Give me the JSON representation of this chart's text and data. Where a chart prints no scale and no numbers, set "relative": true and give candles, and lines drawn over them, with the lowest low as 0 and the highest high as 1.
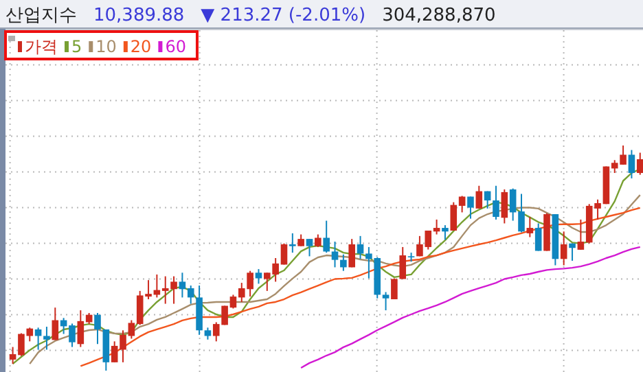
{
  "chart_data": {
    "type": "candlestick",
    "title": "산업지수",
    "annotations": [
      "10,389.88",
      "▼ 213.27 (-2.01%)",
      "304,288,870"
    ],
    "relative": true,
    "grid": true,
    "legend": "top left",
    "categories": [
      null,
      null,
      null,
      null,
      null,
      null,
      null,
      null,
      null,
      null,
      null,
      null,
      null,
      null,
      null,
      null,
      null,
      null,
      null,
      null,
      null,
      null,
      null,
      null,
      null,
      null,
      null,
      null,
      null,
      null,
      null,
      null,
      null,
      null,
      null,
      null,
      null,
      null,
      null,
      null,
      null,
      null,
      null,
      null,
      null,
      null,
      null,
      null,
      null,
      null,
      null,
      null,
      null,
      null,
      null,
      null,
      null,
      null,
      null,
      null,
      null,
      null,
      null,
      null,
      null,
      null,
      null,
      null,
      null,
      null,
      null,
      null,
      null,
      null,
      null
    ],
    "series": [
      {
        "name": "가격",
        "type": "candlestick",
        "color": "#cc2a1e",
        "ohlc": [
          [
            0.049,
            0.105,
            0.03,
            0.073
          ],
          [
            0.069,
            0.166,
            0.065,
            0.163
          ],
          [
            0.154,
            0.191,
            0.13,
            0.187
          ],
          [
            0.183,
            0.191,
            0.093,
            0.154
          ],
          [
            0.154,
            0.195,
            0.093,
            0.138
          ],
          [
            0.136,
            0.28,
            0.136,
            0.224
          ],
          [
            0.224,
            0.234,
            0.163,
            0.197
          ],
          [
            0.201,
            0.209,
            0.105,
            0.126
          ],
          [
            0.118,
            0.268,
            0.105,
            0.22
          ],
          [
            0.215,
            0.256,
            0.207,
            0.248
          ],
          [
            0.248,
            0.256,
            0.118,
            0.183
          ],
          [
            0.183,
            0.183,
            0,
            0.037
          ],
          [
            0.037,
            0.13,
            0.037,
            0.11
          ],
          [
            0.093,
            0.179,
            0.037,
            0.159
          ],
          [
            0.154,
            0.224,
            0.142,
            0.212
          ],
          [
            0.207,
            0.354,
            0.203,
            0.334
          ],
          [
            0.329,
            0.402,
            0.317,
            0.341
          ],
          [
            0.337,
            0.427,
            0.325,
            0.358
          ],
          [
            0.354,
            0.419,
            0.297,
            0.366
          ],
          [
            0.362,
            0.419,
            0.297,
            0.395
          ],
          [
            0.395,
            0.435,
            0.325,
            0.362
          ],
          [
            0.366,
            0.378,
            0.297,
            0.325
          ],
          [
            0.325,
            0.378,
            0.159,
            0.179
          ],
          [
            0.179,
            0.191,
            0.138,
            0.154
          ],
          [
            0.154,
            0.215,
            0.13,
            0.207
          ],
          [
            0.203,
            0.288,
            0.203,
            0.288
          ],
          [
            0.28,
            0.337,
            0.276,
            0.329
          ],
          [
            0.325,
            0.39,
            0.305,
            0.366
          ],
          [
            0.362,
            0.443,
            0.329,
            0.435
          ],
          [
            0.435,
            0.451,
            0.386,
            0.41
          ],
          [
            0.407,
            0.435,
            0.354,
            0.435
          ],
          [
            0.427,
            0.5,
            0.395,
            0.476
          ],
          [
            0.471,
            0.565,
            0.471,
            0.561
          ],
          [
            0.561,
            0.61,
            0.524,
            0.553
          ],
          [
            0.553,
            0.605,
            0.553,
            0.585
          ],
          [
            0.585,
            0.585,
            0.508,
            0.553
          ],
          [
            0.553,
            0.605,
            0.549,
            0.59
          ],
          [
            0.59,
            0.666,
            0.524,
            0.529
          ],
          [
            0.529,
            0.573,
            0.459,
            0.492
          ],
          [
            0.492,
            0.516,
            0.443,
            0.459
          ],
          [
            0.459,
            0.585,
            0.459,
            0.561
          ],
          [
            0.561,
            0.598,
            0.496,
            0.52
          ],
          [
            0.52,
            0.549,
            0.41,
            0.496
          ],
          [
            0.5,
            0.504,
            0.321,
            0.337
          ],
          [
            0.337,
            0.349,
            0.268,
            0.321
          ],
          [
            0.317,
            0.41,
            0.317,
            0.407
          ],
          [
            0.407,
            0.549,
            0.407,
            0.512
          ],
          [
            0.508,
            0.524,
            0.484,
            0.504
          ],
          [
            0.508,
            0.598,
            0.508,
            0.561
          ],
          [
            0.549,
            0.622,
            0.538,
            0.622
          ],
          [
            0.618,
            0.671,
            0.605,
            0.634
          ],
          [
            0.634,
            0.646,
            0.581,
            0.618
          ],
          [
            0.622,
            0.748,
            0.622,
            0.736
          ],
          [
            0.732,
            0.776,
            0.703,
            0.773
          ],
          [
            0.773,
            0.773,
            0.675,
            0.724
          ],
          [
            0.72,
            0.821,
            0.72,
            0.797
          ],
          [
            0.797,
            0.797,
            0.72,
            0.756
          ],
          [
            0.756,
            0.821,
            0.671,
            0.683
          ],
          [
            0.679,
            0.805,
            0.654,
            0.793
          ],
          [
            0.805,
            0.809,
            0.666,
            0.703
          ],
          [
            0.707,
            0.785,
            0.614,
            0.618
          ],
          [
            0.61,
            0.683,
            0.593,
            0.634
          ],
          [
            0.634,
            0.654,
            0.532,
            0.532
          ],
          [
            0.532,
            0.699,
            0.532,
            0.695
          ],
          [
            0.695,
            0.695,
            0.468,
            0.496
          ],
          [
            0.496,
            0.618,
            0.468,
            0.561
          ],
          [
            0.565,
            0.565,
            0.488,
            0.545
          ],
          [
            0.537,
            0.671,
            0.537,
            0.573
          ],
          [
            0.569,
            0.74,
            0.565,
            0.732
          ],
          [
            0.72,
            0.76,
            0.671,
            0.744
          ],
          [
            0.74,
            0.907,
            0.74,
            0.907
          ],
          [
            0.898,
            0.935,
            0.878,
            0.923
          ],
          [
            0.915,
            1,
            0.915,
            0.959
          ],
          [
            0.959,
            0.98,
            0.854,
            0.878
          ],
          [
            0.878,
            0.968,
            0.87,
            0.939
          ]
        ],
        "colors": [
          "#cc2a1e",
          "#cc2a1e",
          "#cc2a1e",
          "#0f86bf",
          "#0f86bf",
          "#cc2a1e",
          "#0f86bf",
          "#0f86bf",
          "#cc2a1e",
          "#cc2a1e",
          "#0f86bf",
          "#0f86bf",
          "#cc2a1e",
          "#cc2a1e",
          "#cc2a1e",
          "#cc2a1e",
          "#cc2a1e",
          "#cc2a1e",
          "#cc2a1e",
          "#cc2a1e",
          "#0f86bf",
          "#0f86bf",
          "#0f86bf",
          "#0f86bf",
          "#cc2a1e",
          "#cc2a1e",
          "#cc2a1e",
          "#cc2a1e",
          "#cc2a1e",
          "#0f86bf",
          "#cc2a1e",
          "#cc2a1e",
          "#cc2a1e",
          "#0f86bf",
          "#cc2a1e",
          "#0f86bf",
          "#cc2a1e",
          "#0f86bf",
          "#0f86bf",
          "#0f86bf",
          "#cc2a1e",
          "#0f86bf",
          "#0f86bf",
          "#0f86bf",
          "#0f86bf",
          "#cc2a1e",
          "#cc2a1e",
          "#0f86bf",
          "#cc2a1e",
          "#cc2a1e",
          "#cc2a1e",
          "#0f86bf",
          "#cc2a1e",
          "#cc2a1e",
          "#0f86bf",
          "#cc2a1e",
          "#0f86bf",
          "#0f86bf",
          "#cc2a1e",
          "#0f86bf",
          "#0f86bf",
          "#cc2a1e",
          "#0f86bf",
          "#cc2a1e",
          "#0f86bf",
          "#cc2a1e",
          "#0f86bf",
          "#cc2a1e",
          "#cc2a1e",
          "#cc2a1e",
          "#cc2a1e",
          "#cc2a1e",
          "#cc2a1e",
          "#0f86bf",
          "#cc2a1e"
        ]
      },
      {
        "name": "5",
        "type": "line",
        "color": "#78a032",
        "values": [
          0.03,
          0.061,
          0.091,
          0.116,
          0.134,
          0.159,
          0.183,
          0.189,
          0.201,
          0.207,
          0.201,
          0.177,
          0.165,
          0.159,
          0.171,
          0.226,
          0.268,
          0.305,
          0.335,
          0.366,
          0.372,
          0.354,
          0.305,
          0.268,
          0.25,
          0.238,
          0.238,
          0.262,
          0.317,
          0.366,
          0.396,
          0.427,
          0.445,
          0.488,
          0.53,
          0.549,
          0.555,
          0.549,
          0.543,
          0.524,
          0.518,
          0.518,
          0.506,
          0.47,
          0.439,
          0.415,
          0.421,
          0.427,
          0.47,
          0.508,
          0.545,
          0.579,
          0.62,
          0.66,
          0.695,
          0.715,
          0.732,
          0.748,
          0.742,
          0.727,
          0.701,
          0.681,
          0.66,
          0.646,
          0.626,
          0.599,
          0.569,
          0.565,
          0.573,
          0.63,
          0.691,
          0.752,
          0.843,
          0.878,
          0.895
        ]
      },
      {
        "name": "10",
        "type": "line",
        "color": "#a88e6c",
        "values": [
          null,
          null,
          0.03,
          0.081,
          0.11,
          0.132,
          0.146,
          0.159,
          0.171,
          0.18,
          0.183,
          0.171,
          0.165,
          0.165,
          0.171,
          0.195,
          0.207,
          0.226,
          0.238,
          0.256,
          0.274,
          0.293,
          0.301,
          0.302,
          0.305,
          0.305,
          0.305,
          0.305,
          0.305,
          0.311,
          0.317,
          0.341,
          0.376,
          0.409,
          0.439,
          0.482,
          0.503,
          0.512,
          0.509,
          0.506,
          0.503,
          0.494,
          0.488,
          0.488,
          0.476,
          0.468,
          0.463,
          0.47,
          0.488,
          0.5,
          0.512,
          0.524,
          0.549,
          0.598,
          0.646,
          0.677,
          0.695,
          0.707,
          0.713,
          0.72,
          0.724,
          0.724,
          0.72,
          0.701,
          0.683,
          0.659,
          0.634,
          0.616,
          0.616,
          0.628,
          0.646,
          0.671,
          0.695,
          0.738,
          0.78
        ]
      },
      {
        "name": "20",
        "type": "line",
        "color": "#f2561e",
        "values": [
          null,
          null,
          null,
          null,
          null,
          null,
          null,
          null,
          0.02,
          0.034,
          0.049,
          0.064,
          0.079,
          0.104,
          0.128,
          0.152,
          0.171,
          0.183,
          0.195,
          0.207,
          0.223,
          0.232,
          0.238,
          0.238,
          0.238,
          0.241,
          0.25,
          0.262,
          0.274,
          0.284,
          0.299,
          0.305,
          0.317,
          0.335,
          0.348,
          0.363,
          0.378,
          0.393,
          0.407,
          0.409,
          0.412,
          0.424,
          0.439,
          0.454,
          0.463,
          0.476,
          0.485,
          0.49,
          0.494,
          0.506,
          0.512,
          0.524,
          0.534,
          0.543,
          0.552,
          0.561,
          0.569,
          0.579,
          0.59,
          0.601,
          0.61,
          0.622,
          0.63,
          0.64,
          0.649,
          0.65,
          0.65,
          0.652,
          0.665,
          0.674,
          0.683,
          0.692,
          0.701,
          0.713,
          0.723
        ]
      },
      {
        "name": "60",
        "type": "line",
        "color": "#d21ad2",
        "values": [
          null,
          null,
          null,
          null,
          null,
          null,
          null,
          null,
          null,
          null,
          null,
          null,
          null,
          null,
          null,
          null,
          null,
          null,
          null,
          null,
          null,
          null,
          null,
          null,
          null,
          null,
          null,
          null,
          null,
          null,
          null,
          null,
          null,
          null,
          0.012,
          0.034,
          0.049,
          0.067,
          0.082,
          0.104,
          0.12,
          0.14,
          0.159,
          0.18,
          0.198,
          0.216,
          0.235,
          0.25,
          0.265,
          0.277,
          0.29,
          0.305,
          0.323,
          0.341,
          0.354,
          0.366,
          0.378,
          0.39,
          0.407,
          0.415,
          0.424,
          0.43,
          0.439,
          0.447,
          0.451,
          0.453,
          0.457,
          0.463,
          0.473,
          0.485,
          0.5,
          0.512,
          0.527,
          0.54,
          0.549
        ]
      }
    ]
  }
}
